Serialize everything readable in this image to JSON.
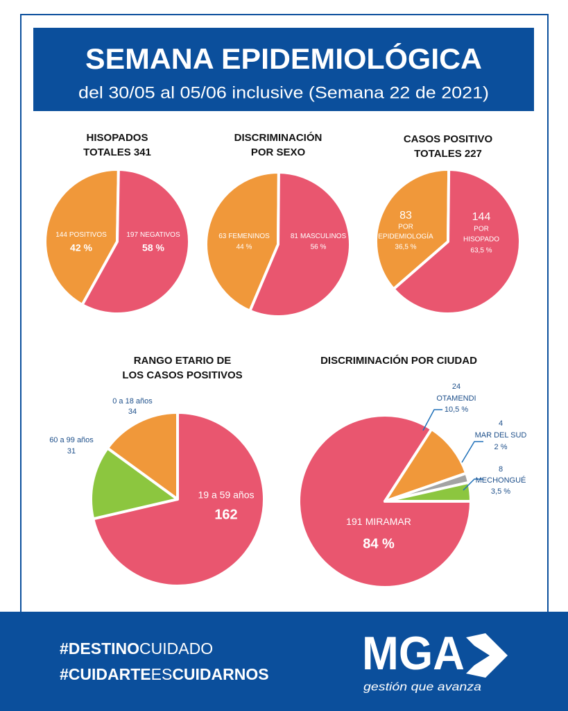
{
  "header": {
    "title": "SEMANA EPIDEMIOLÓGICA",
    "subtitle": "del 30/05 al 05/06 inclusive (Semana 22 de 2021)"
  },
  "chart_data": [
    {
      "type": "pie",
      "title": [
        "HISOPADOS",
        "TOTALES 341"
      ],
      "categories": [
        "POSITIVOS",
        "NEGATIVOS"
      ],
      "values": [
        144,
        197
      ],
      "percent_labels": [
        "42 %",
        "58 %"
      ],
      "colors": [
        "#f0983a",
        "#e9566f"
      ]
    },
    {
      "type": "pie",
      "title": [
        "DISCRIMINACIÓN",
        "POR SEXO"
      ],
      "categories": [
        "FEMENINOS",
        "MASCULINOS"
      ],
      "values": [
        63,
        81
      ],
      "percent_labels": [
        "44 %",
        "56 %"
      ],
      "colors": [
        "#f0983a",
        "#e9566f"
      ]
    },
    {
      "type": "pie",
      "title": [
        "CASOS POSITIVO",
        "TOTALES 227"
      ],
      "categories": [
        [
          "POR",
          "EPIDEMIOLOGÍA"
        ],
        [
          "POR",
          "HISOPADO"
        ]
      ],
      "values": [
        83,
        144
      ],
      "percent_labels": [
        "36,5 %",
        "63,5 %"
      ],
      "colors": [
        "#f0983a",
        "#e9566f"
      ]
    },
    {
      "type": "pie",
      "title": [
        "RANGO ETARIO DE",
        "LOS CASOS POSITIVOS"
      ],
      "categories": [
        "19 a 59 años",
        "60 a 99 años",
        "0 a 18 años"
      ],
      "values": [
        162,
        31,
        34
      ],
      "colors": [
        "#e9566f",
        "#8cc63f",
        "#f0983a"
      ]
    },
    {
      "type": "pie",
      "title": [
        "DISCRIMINACIÓN POR CIUDAD"
      ],
      "categories": [
        "MIRAMAR",
        "OTAMENDI",
        "MAR DEL SUD",
        "MECHONGUÉ"
      ],
      "values": [
        191,
        24,
        4,
        8
      ],
      "percent_labels": [
        "84 %",
        "10,5 %",
        "2 %",
        "3,5 %"
      ],
      "colors": [
        "#e9566f",
        "#f0983a",
        "#a3a3a3",
        "#8cc63f"
      ]
    }
  ],
  "footer": {
    "hashtags": [
      [
        "#DESTINO",
        "CUIDADO"
      ],
      [
        "#CUIDARTE",
        "ES",
        "CUIDARNOS"
      ]
    ],
    "logo": "MGA",
    "tagline": "gestión que avanza"
  }
}
